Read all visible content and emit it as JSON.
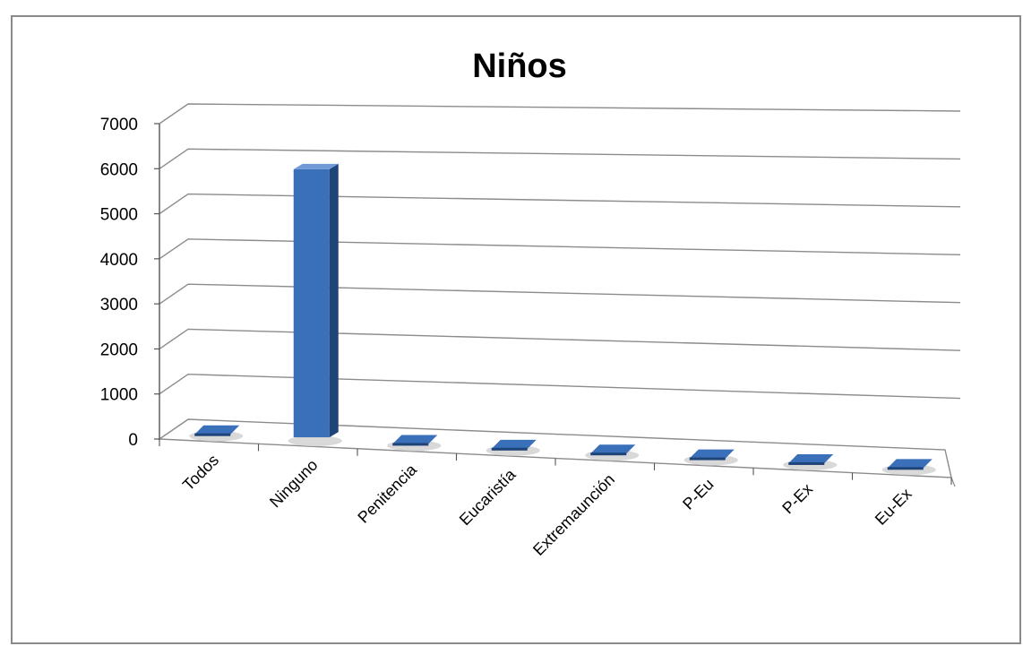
{
  "chart_data": {
    "type": "bar",
    "title": "Niños",
    "xlabel": "",
    "ylabel": "",
    "categories": [
      "Todos",
      "Ninguno",
      "Penitencia",
      "Eucaristía",
      "Extremaunción",
      "P-Eu",
      "P-Ex",
      "Eu-Ex"
    ],
    "values": [
      0,
      5950,
      0,
      0,
      0,
      0,
      0,
      0
    ],
    "ylim": [
      0,
      7000
    ],
    "yticks": [
      "0",
      "1000",
      "2000",
      "3000",
      "4000",
      "5000",
      "6000",
      "7000"
    ],
    "grid": true,
    "legend": "none",
    "style": "3d-column",
    "colors": {
      "bar_front": "#3a6fba",
      "bar_side": "#1f4478",
      "bar_top": "#6f9ad6",
      "grid": "#8c8c8c",
      "axis": "#555555"
    }
  }
}
